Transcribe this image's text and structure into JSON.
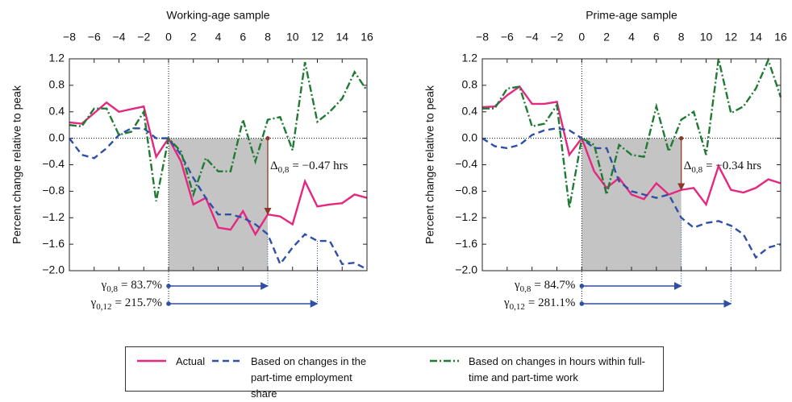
{
  "chart_data": [
    {
      "type": "line",
      "title": "Working-age sample",
      "y_label": "Percent change relative to peak",
      "x": [
        -8,
        -7,
        -6,
        -5,
        -4,
        -3,
        -2,
        -1,
        0,
        1,
        2,
        3,
        4,
        5,
        6,
        7,
        8,
        9,
        10,
        11,
        12,
        13,
        14,
        15,
        16
      ],
      "xlim": [
        -8,
        16
      ],
      "xticks": [
        {
          "value": -8,
          "label": "−8"
        },
        {
          "value": -6,
          "label": "−6"
        },
        {
          "value": -4,
          "label": "−4"
        },
        {
          "value": -2,
          "label": "−2"
        },
        0,
        2,
        4,
        6,
        8,
        10,
        12,
        14,
        16
      ],
      "ylim": [
        -2.0,
        1.2
      ],
      "yticks": [
        {
          "value": -2.0,
          "label": "−2.0"
        },
        {
          "value": -1.6,
          "label": "−1.6"
        },
        {
          "value": -1.2,
          "label": "−1.2"
        },
        {
          "value": -0.8,
          "label": "−0.8"
        },
        {
          "value": -0.4,
          "label": "−0.4"
        },
        {
          "value": 0,
          "label": "0.0"
        },
        0.4,
        0.8,
        1.2
      ],
      "series": [
        {
          "name": "Actual",
          "color": "#e5287f",
          "dash": "solid",
          "values": [
            0.24,
            0.22,
            0.38,
            0.54,
            0.4,
            0.44,
            0.48,
            -0.28,
            0.0,
            -0.35,
            -1.0,
            -0.9,
            -1.35,
            -1.38,
            -1.1,
            -1.45,
            -1.15,
            -1.18,
            -1.3,
            -0.65,
            -1.03,
            -1.0,
            -0.98,
            -0.85,
            -0.9
          ]
        },
        {
          "name": "Based on changes in the part-time employment share",
          "color": "#2f4fa6",
          "dash": "dashed",
          "values": [
            0.0,
            -0.25,
            -0.3,
            -0.15,
            0.05,
            0.15,
            0.15,
            0.0,
            0.0,
            -0.25,
            -0.6,
            -0.9,
            -1.15,
            -1.15,
            -1.2,
            -1.3,
            -1.45,
            -1.9,
            -1.65,
            -1.45,
            -1.55,
            -1.55,
            -1.9,
            -1.88,
            -1.98
          ]
        },
        {
          "name": "Based on changes in hours within full-time and part-time work",
          "color": "#1f7a34",
          "dash": "dashdot",
          "values": [
            0.2,
            0.18,
            0.45,
            0.45,
            0.05,
            0.1,
            0.4,
            -0.95,
            0.0,
            -0.2,
            -0.85,
            -0.3,
            -0.5,
            -0.5,
            0.28,
            -0.35,
            0.28,
            0.32,
            -0.18,
            1.15,
            0.25,
            0.4,
            0.6,
            1.0,
            0.72
          ]
        }
      ],
      "shade": [
        0,
        8
      ],
      "delta": {
        "symbol": "Δ",
        "subscript": "0,8",
        "text": "= −0.47 hrs",
        "x": 8
      },
      "gammas": [
        {
          "symbol": "γ",
          "subscript": "0,8",
          "text": "= 83.7%",
          "x": [
            0,
            8
          ]
        },
        {
          "symbol": "γ",
          "subscript": "0,12",
          "text": "= 215.7%",
          "x": [
            0,
            12
          ]
        }
      ]
    },
    {
      "type": "line",
      "title": "Prime-age sample",
      "y_label": "Percent change relative to peak",
      "x": [
        -8,
        -7,
        -6,
        -5,
        -4,
        -3,
        -2,
        -1,
        0,
        1,
        2,
        3,
        4,
        5,
        6,
        7,
        8,
        9,
        10,
        11,
        12,
        13,
        14,
        15,
        16
      ],
      "xlim": [
        -8,
        16
      ],
      "xticks": [
        {
          "value": -8,
          "label": "−8"
        },
        {
          "value": -6,
          "label": "−6"
        },
        {
          "value": -4,
          "label": "−4"
        },
        {
          "value": -2,
          "label": "−2"
        },
        0,
        2,
        4,
        6,
        8,
        10,
        12,
        14,
        16
      ],
      "ylim": [
        -2.0,
        1.2
      ],
      "yticks": [
        {
          "value": -2.0,
          "label": "−2.0"
        },
        {
          "value": -1.6,
          "label": "−1.6"
        },
        {
          "value": -1.2,
          "label": "−1.2"
        },
        {
          "value": -0.8,
          "label": "−0.8"
        },
        {
          "value": -0.4,
          "label": "−0.4"
        },
        {
          "value": 0,
          "label": "0.0"
        },
        0.4,
        0.8,
        1.2
      ],
      "series": [
        {
          "color": "#e5287f",
          "dash": "solid",
          "values": [
            0.47,
            0.48,
            0.65,
            0.78,
            0.52,
            0.52,
            0.55,
            -0.25,
            0.0,
            -0.5,
            -0.75,
            -0.6,
            -0.85,
            -0.92,
            -0.68,
            -0.85,
            -0.78,
            -0.75,
            -1.0,
            -0.42,
            -0.78,
            -0.82,
            -0.75,
            -0.62,
            -0.68
          ]
        },
        {
          "color": "#2f4fa6",
          "dash": "dashed",
          "values": [
            0.0,
            -0.12,
            -0.15,
            -0.1,
            0.05,
            0.12,
            0.15,
            0.12,
            0.0,
            -0.15,
            -0.15,
            -0.65,
            -0.8,
            -0.85,
            -0.9,
            -0.85,
            -1.2,
            -1.35,
            -1.28,
            -1.25,
            -1.32,
            -1.45,
            -1.8,
            -1.65,
            -1.6
          ]
        },
        {
          "color": "#1f7a34",
          "dash": "dashdot",
          "values": [
            0.45,
            0.45,
            0.75,
            0.78,
            0.18,
            0.22,
            0.5,
            -1.05,
            0.0,
            -0.1,
            -0.85,
            -0.1,
            -0.25,
            -0.28,
            0.48,
            -0.2,
            0.28,
            0.4,
            -0.25,
            1.2,
            0.38,
            0.48,
            0.75,
            1.18,
            0.62
          ]
        }
      ],
      "shade": [
        0,
        8
      ],
      "delta": {
        "symbol": "Δ",
        "subscript": "0,8",
        "text": "= −0.34 hrs",
        "x": 8
      },
      "gammas": [
        {
          "symbol": "γ",
          "subscript": "0,8",
          "text": "= 84.7%",
          "x": [
            0,
            8
          ]
        },
        {
          "symbol": "γ",
          "subscript": "0,12",
          "text": "= 281.1%",
          "x": [
            0,
            12
          ]
        }
      ]
    }
  ]
}
